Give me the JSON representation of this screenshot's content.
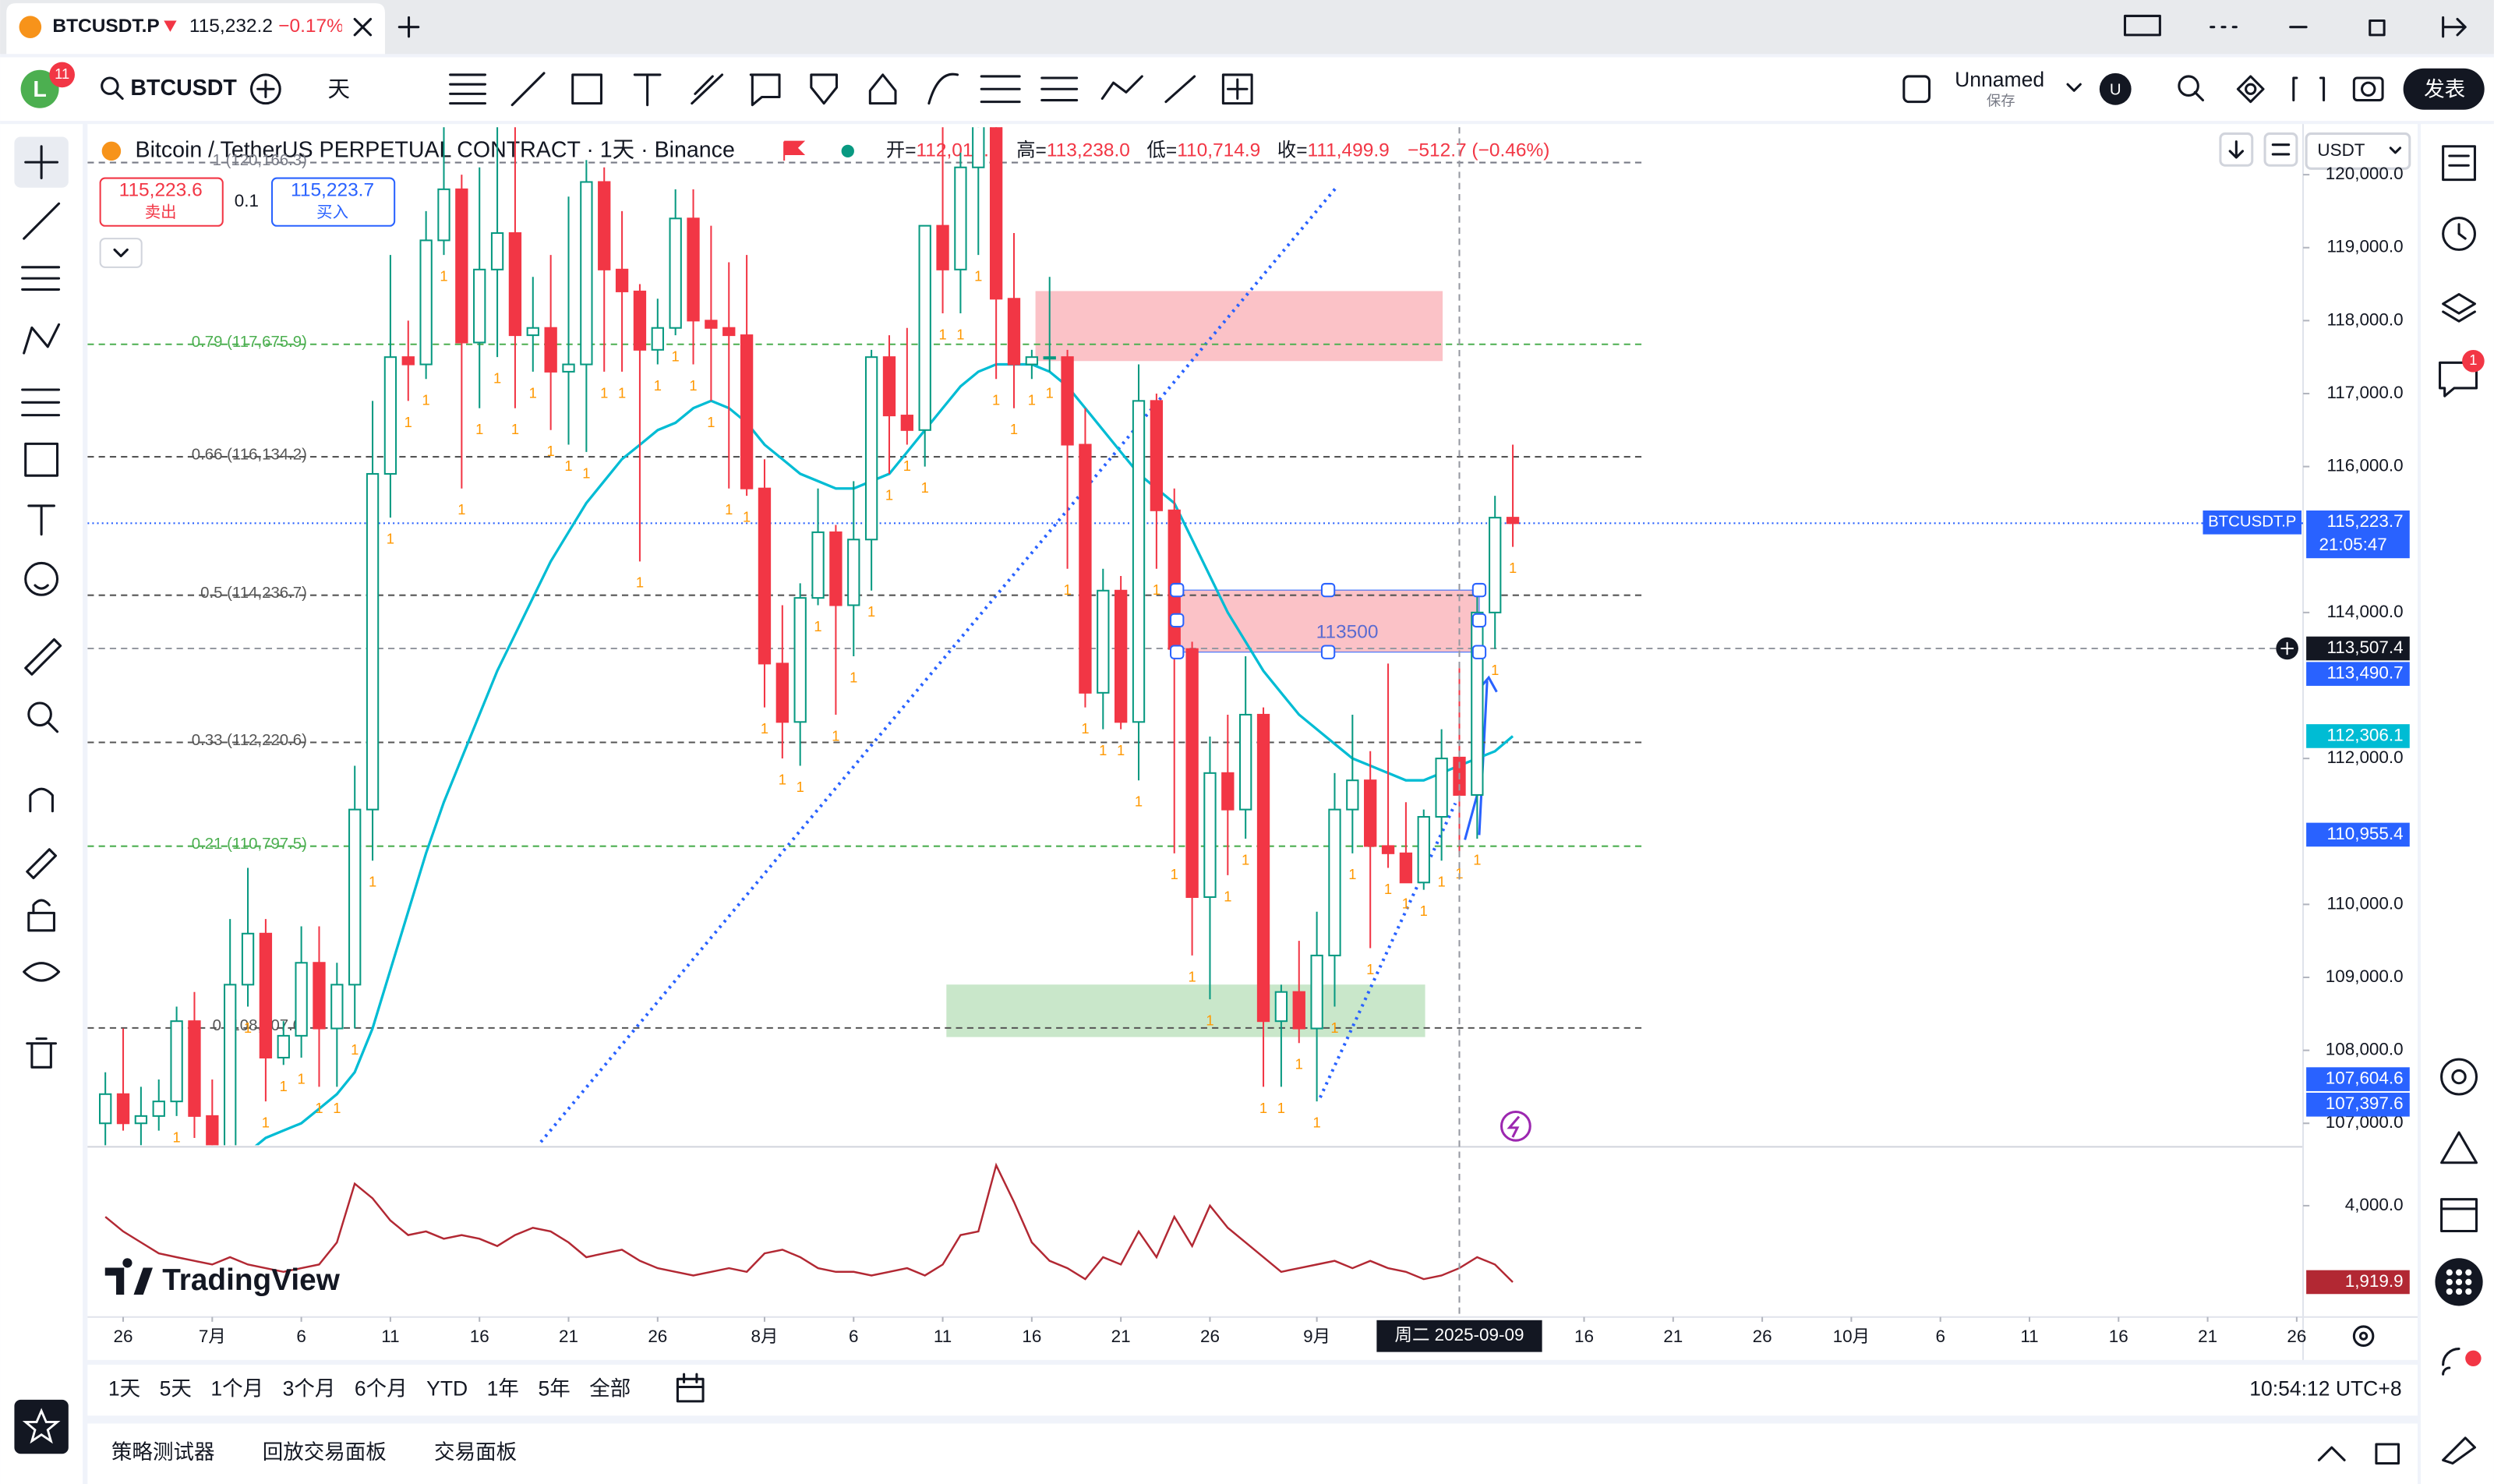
{
  "tab": {
    "symbol": "BTCUSDT.P",
    "price": "115,232.2",
    "change": "−0.17%"
  },
  "toolbar": {
    "avatar": "L",
    "notifications": "11",
    "symbol": "BTCUSDT",
    "interval": "天",
    "layout_name": "Unnamed",
    "save": "保存",
    "publish": "发表",
    "user": "U"
  },
  "trade": {
    "sell_price": "115,223.6",
    "sell": "卖出",
    "qty": "0.1",
    "buy_price": "115,223.7",
    "buy": "买入"
  },
  "currency": "USDT",
  "logo": "TradingView",
  "sidebar_badge": "1",
  "ranges": [
    "1天",
    "5天",
    "1个月",
    "3个月",
    "6个月",
    "YTD",
    "1年",
    "5年",
    "全部"
  ],
  "clock": "10:54:12 UTC+8",
  "panels": [
    "策略测试器",
    "回放交易面板",
    "交易面板"
  ],
  "chart_data": {
    "type": "candlestick",
    "title": "Bitcoin / TetherUS PERPETUAL CONTRACT · 1天 · Binance",
    "ohlc_header": {
      "labels": [
        "开=",
        "高=",
        "低=",
        "收="
      ],
      "values": [
        112012.7,
        113238,
        110714.9,
        111499.9
      ],
      "value_labels": [
        "112,012.7",
        "113,238.0",
        "110,714.9",
        "111,499.9"
      ],
      "change": "−512.7 (−0.46%)"
    },
    "up_color": "#089981",
    "down_color": "#f23645",
    "xlim": [
      "2025-06-24",
      "2025-10-26"
    ],
    "xticks": [
      {
        "value": "2025-06-26",
        "label": "26"
      },
      {
        "value": "2025-07-01",
        "label": "7月"
      },
      {
        "value": "2025-07-06",
        "label": "6"
      },
      {
        "value": "2025-07-11",
        "label": "11"
      },
      {
        "value": "2025-07-16",
        "label": "16"
      },
      {
        "value": "2025-07-21",
        "label": "21"
      },
      {
        "value": "2025-07-26",
        "label": "26"
      },
      {
        "value": "2025-08-01",
        "label": "8月"
      },
      {
        "value": "2025-08-06",
        "label": "6"
      },
      {
        "value": "2025-08-11",
        "label": "11"
      },
      {
        "value": "2025-08-16",
        "label": "16"
      },
      {
        "value": "2025-08-21",
        "label": "21"
      },
      {
        "value": "2025-08-26",
        "label": "26"
      },
      {
        "value": "2025-09-01",
        "label": "9月"
      },
      {
        "value": "2025-09-16",
        "label": "16"
      },
      {
        "value": "2025-09-21",
        "label": "21"
      },
      {
        "value": "2025-09-26",
        "label": "26"
      },
      {
        "value": "2025-10-01",
        "label": "10月"
      },
      {
        "value": "2025-10-06",
        "label": "6"
      },
      {
        "value": "2025-10-11",
        "label": "11"
      },
      {
        "value": "2025-10-16",
        "label": "16"
      },
      {
        "value": "2025-10-21",
        "label": "21"
      },
      {
        "value": "2025-10-26",
        "label": "26"
      }
    ],
    "ylim": [
      106700,
      120650
    ],
    "yticks": [
      {
        "value": 120000,
        "label": "120,000.0"
      },
      {
        "value": 119000,
        "label": "119,000.0"
      },
      {
        "value": 118000,
        "label": "118,000.0"
      },
      {
        "value": 117000,
        "label": "117,000.0"
      },
      {
        "value": 116000,
        "label": "116,000.0"
      },
      {
        "value": 114000,
        "label": "114,000.0"
      },
      {
        "value": 112000,
        "label": "112,000.0"
      },
      {
        "value": 110000,
        "label": "110,000.0"
      },
      {
        "value": 109000,
        "label": "109,000.0"
      },
      {
        "value": 108000,
        "label": "108,000.0"
      },
      {
        "value": 107000,
        "label": "107,000.0"
      }
    ],
    "x": [
      "2025-06-25",
      "2025-06-26",
      "2025-06-27",
      "2025-06-28",
      "2025-06-29",
      "2025-06-30",
      "2025-07-01",
      "2025-07-02",
      "2025-07-03",
      "2025-07-04",
      "2025-07-05",
      "2025-07-06",
      "2025-07-07",
      "2025-07-08",
      "2025-07-09",
      "2025-07-10",
      "2025-07-11",
      "2025-07-12",
      "2025-07-13",
      "2025-07-14",
      "2025-07-15",
      "2025-07-16",
      "2025-07-17",
      "2025-07-18",
      "2025-07-19",
      "2025-07-20",
      "2025-07-21",
      "2025-07-22",
      "2025-07-23",
      "2025-07-24",
      "2025-07-25",
      "2025-07-26",
      "2025-07-27",
      "2025-07-28",
      "2025-07-29",
      "2025-07-30",
      "2025-07-31",
      "2025-08-01",
      "2025-08-02",
      "2025-08-03",
      "2025-08-04",
      "2025-08-05",
      "2025-08-06",
      "2025-08-07",
      "2025-08-08",
      "2025-08-09",
      "2025-08-10",
      "2025-08-11",
      "2025-08-12",
      "2025-08-13",
      "2025-08-14",
      "2025-08-15",
      "2025-08-16",
      "2025-08-17",
      "2025-08-18",
      "2025-08-19",
      "2025-08-20",
      "2025-08-21",
      "2025-08-22",
      "2025-08-23",
      "2025-08-24",
      "2025-08-25",
      "2025-08-26",
      "2025-08-27",
      "2025-08-28",
      "2025-08-29",
      "2025-08-30",
      "2025-08-31",
      "2025-09-01",
      "2025-09-02",
      "2025-09-03",
      "2025-09-04",
      "2025-09-05",
      "2025-09-06",
      "2025-09-07",
      "2025-09-08",
      "2025-09-09",
      "2025-09-10",
      "2025-09-11",
      "2025-09-12"
    ],
    "candles": [
      [
        107000,
        107700,
        106600,
        107400
      ],
      [
        107400,
        108300,
        106900,
        107000
      ],
      [
        107000,
        107500,
        106700,
        107100
      ],
      [
        107100,
        107600,
        106900,
        107300
      ],
      [
        107300,
        108600,
        107100,
        108400
      ],
      [
        108400,
        108800,
        106800,
        107100
      ],
      [
        107100,
        107600,
        105900,
        106000
      ],
      [
        106000,
        109800,
        105800,
        108900
      ],
      [
        108900,
        110500,
        108600,
        109600
      ],
      [
        109600,
        109800,
        107300,
        107900
      ],
      [
        107900,
        108400,
        107800,
        108200
      ],
      [
        108200,
        109700,
        107900,
        109200
      ],
      [
        109200,
        109700,
        107500,
        108300
      ],
      [
        108300,
        109200,
        107500,
        108900
      ],
      [
        108900,
        111900,
        108300,
        111300
      ],
      [
        111300,
        116900,
        110600,
        115900
      ],
      [
        115900,
        118900,
        115300,
        117500
      ],
      [
        117500,
        118000,
        116900,
        117400
      ],
      [
        117400,
        119500,
        117200,
        119100
      ],
      [
        119100,
        123200,
        118900,
        119800
      ],
      [
        119800,
        120000,
        115700,
        117700
      ],
      [
        117700,
        120100,
        116800,
        118700
      ],
      [
        118700,
        120900,
        117500,
        119200
      ],
      [
        119200,
        120900,
        116800,
        117800
      ],
      [
        117800,
        118600,
        117300,
        117900
      ],
      [
        117900,
        118900,
        116500,
        117300
      ],
      [
        117300,
        119700,
        116300,
        117400
      ],
      [
        117400,
        120200,
        116200,
        119900
      ],
      [
        119900,
        120100,
        117300,
        118700
      ],
      [
        118700,
        119500,
        117300,
        118400
      ],
      [
        118400,
        118500,
        114700,
        117600
      ],
      [
        117600,
        118300,
        117400,
        117900
      ],
      [
        117900,
        119800,
        117800,
        119400
      ],
      [
        119400,
        119800,
        117400,
        118000
      ],
      [
        118000,
        119300,
        116900,
        117900
      ],
      [
        117900,
        118800,
        115700,
        117800
      ],
      [
        117800,
        118900,
        115600,
        115700
      ],
      [
        115700,
        116100,
        112700,
        113300
      ],
      [
        113300,
        114100,
        112000,
        112500
      ],
      [
        112500,
        114400,
        111900,
        114200
      ],
      [
        114200,
        115700,
        114100,
        115100
      ],
      [
        115100,
        115200,
        112600,
        114100
      ],
      [
        114100,
        115800,
        113400,
        115000
      ],
      [
        115000,
        117600,
        114300,
        117500
      ],
      [
        117500,
        117800,
        115900,
        116700
      ],
      [
        116700,
        117900,
        116300,
        116500
      ],
      [
        116500,
        119300,
        116000,
        119300
      ],
      [
        119300,
        122300,
        118100,
        118700
      ],
      [
        118700,
        120300,
        118100,
        120100
      ],
      [
        120100,
        123700,
        118900,
        123300
      ],
      [
        123300,
        124500,
        117200,
        118300
      ],
      [
        118300,
        119200,
        116800,
        117400
      ],
      [
        117400,
        117600,
        117200,
        117500
      ],
      [
        117500,
        118600,
        117300,
        117500
      ],
      [
        117500,
        117600,
        114600,
        116300
      ],
      [
        116300,
        116800,
        112700,
        112900
      ],
      [
        112900,
        114600,
        112400,
        114300
      ],
      [
        114300,
        114500,
        112400,
        112500
      ],
      [
        112500,
        117400,
        111700,
        116900
      ],
      [
        116900,
        117000,
        114600,
        115400
      ],
      [
        115400,
        115700,
        110700,
        113500
      ],
      [
        113500,
        113600,
        109300,
        110100
      ],
      [
        110100,
        112300,
        108700,
        111800
      ],
      [
        111800,
        112600,
        110400,
        111300
      ],
      [
        111300,
        113400,
        110900,
        112600
      ],
      [
        112600,
        112700,
        107500,
        108400
      ],
      [
        108400,
        108900,
        107500,
        108800
      ],
      [
        108800,
        109500,
        108100,
        108300
      ],
      [
        108300,
        109900,
        107300,
        109300
      ],
      [
        109300,
        111800,
        108600,
        111300
      ],
      [
        111300,
        112600,
        110700,
        111700
      ],
      [
        111700,
        112100,
        109400,
        110800
      ],
      [
        110800,
        113300,
        110500,
        110700
      ],
      [
        110700,
        111400,
        110300,
        110300
      ],
      [
        110300,
        111300,
        110200,
        111200
      ],
      [
        111200,
        112400,
        110600,
        112000
      ],
      [
        112012.7,
        113238,
        110714.9,
        111499.9
      ],
      [
        111499.9,
        114400,
        110900,
        114000
      ],
      [
        114000,
        115600,
        113500,
        115300
      ],
      [
        115300,
        116300,
        114900,
        115223.7
      ]
    ],
    "signal_label": "1",
    "signal_color": "#ff9800",
    "ma": {
      "color": "#00bcd4",
      "values": [
        104500,
        104800,
        105100,
        105400,
        105700,
        106000,
        106200,
        106400,
        106600,
        106800,
        106900,
        107000,
        107200,
        107400,
        107700,
        108300,
        109100,
        109900,
        110700,
        111400,
        112000,
        112600,
        113200,
        113700,
        114200,
        114700,
        115100,
        115500,
        115800,
        116100,
        116300,
        116500,
        116600,
        116800,
        116900,
        116800,
        116600,
        116300,
        116100,
        115900,
        115800,
        115700,
        115700,
        115800,
        115900,
        116200,
        116500,
        116800,
        117100,
        117300,
        117400,
        117400,
        117400,
        117300,
        117100,
        116800,
        116500,
        116200,
        115900,
        115700,
        115500,
        115000,
        114500,
        114000,
        113600,
        113200,
        112900,
        112600,
        112400,
        112200,
        112000,
        111900,
        111800,
        111700,
        111700,
        111800,
        111900,
        112000,
        112100,
        112306.1
      ]
    },
    "lower_pane": {
      "color": "#b22833",
      "ylim": [
        970,
        5560
      ],
      "yticks": [
        {
          "value": 4000,
          "label": "4,000.0"
        }
      ],
      "values": [
        3700,
        3300,
        3000,
        2700,
        2600,
        2500,
        2400,
        2600,
        2400,
        2300,
        2200,
        2300,
        2400,
        3000,
        4600,
        4200,
        3600,
        3200,
        3300,
        3100,
        3200,
        3100,
        2900,
        3200,
        3400,
        3300,
        3000,
        2600,
        2700,
        2800,
        2500,
        2300,
        2200,
        2100,
        2200,
        2300,
        2200,
        2700,
        2800,
        2600,
        2300,
        2200,
        2200,
        2100,
        2200,
        2300,
        2100,
        2400,
        3200,
        3300,
        5100,
        4100,
        3000,
        2500,
        2300,
        2000,
        2600,
        2400,
        3300,
        2600,
        3700,
        2900,
        4000,
        3400,
        3000,
        2600,
        2200,
        2300,
        2400,
        2500,
        2300,
        2500,
        2300,
        2200,
        2000,
        2100,
        2300,
        2600,
        2400,
        1919.9
      ],
      "last_label": {
        "value": 1919.9,
        "label": "1,919.9"
      }
    },
    "fib_levels": [
      {
        "value": 120166.3,
        "label": "1 (120,166.3)",
        "color": "#787b86"
      },
      {
        "value": 117675.9,
        "label": "0.79 (117,675.9)",
        "color": "#4caf50"
      },
      {
        "value": 116134.2,
        "label": "0.66 (116,134.2)",
        "color": "#555555"
      },
      {
        "value": 114236.7,
        "label": "0.5 (114,236.7)",
        "color": "#555555"
      },
      {
        "value": 112220.6,
        "label": "0.33 (112,220.6)",
        "color": "#555555"
      },
      {
        "value": 110797.5,
        "label": "0.21 (110,797.5)",
        "color": "#4caf50"
      },
      {
        "value": 108307,
        "label": "0 (108,307.0)",
        "color": "#555555"
      }
    ],
    "price_labels": [
      {
        "value": 115223.7,
        "label": "115,223.7",
        "color": "#2962ff",
        "name": "BTCUSDT.P",
        "time": "21:05:47",
        "line": "dotted"
      },
      {
        "value": 113507.4,
        "label": "113,507.4",
        "color": "#131722",
        "line": "dashed"
      },
      {
        "value": 113490.7,
        "label": "113,490.7",
        "color": "#2962ff"
      },
      {
        "value": 112306.1,
        "label": "112,306.1",
        "color": "#00bcd4"
      },
      {
        "value": 110955.4,
        "label": "110,955.4",
        "color": "#2962ff"
      },
      {
        "value": 107604.6,
        "label": "107,604.6",
        "color": "#2962ff"
      },
      {
        "value": 107397.6,
        "label": "107,397.6",
        "color": "#2962ff"
      }
    ],
    "crosshair": {
      "x": "2025-09-09",
      "label": "周二 2025-09-09"
    },
    "zone_label": "113500"
  }
}
